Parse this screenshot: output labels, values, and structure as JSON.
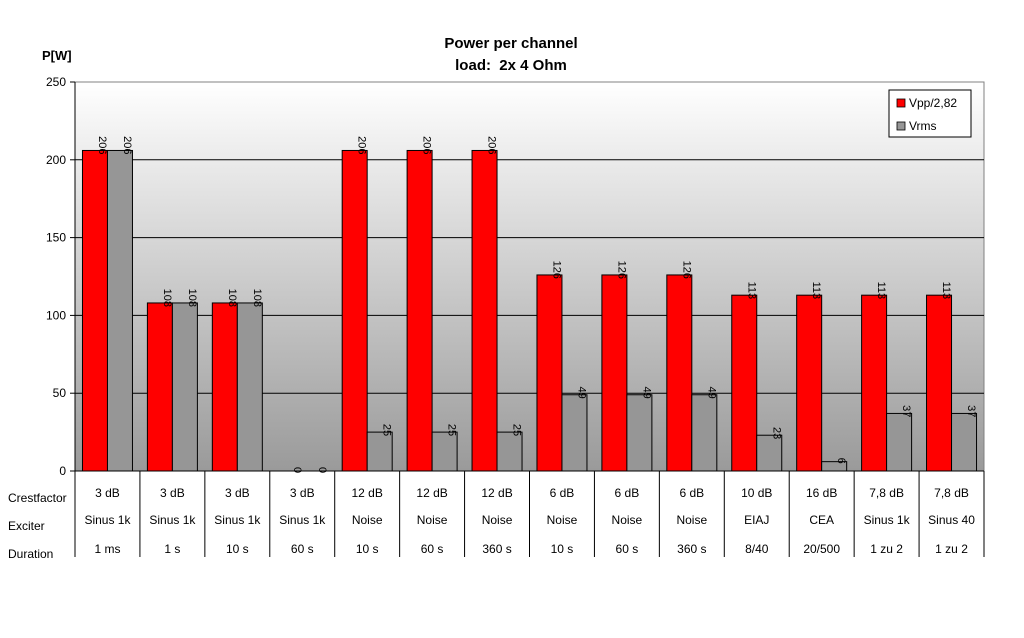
{
  "chart_data": {
    "type": "bar",
    "title": "Power per channel",
    "subtitle": "load:  2x 4 Ohm",
    "ylabel": "P[W]",
    "ylim": [
      0,
      250
    ],
    "yticks": [
      "0",
      "50",
      "100",
      "150",
      "200",
      "250"
    ],
    "grid": true,
    "legend_position": "top-right",
    "row_labels": [
      "Crestfactor",
      "Exciter",
      "Duration"
    ],
    "categories": [
      {
        "crest": "3 dB",
        "exciter": "Sinus 1k",
        "duration": "1 ms"
      },
      {
        "crest": "3 dB",
        "exciter": "Sinus 1k",
        "duration": "1 s"
      },
      {
        "crest": "3 dB",
        "exciter": "Sinus 1k",
        "duration": "10 s"
      },
      {
        "crest": "3 dB",
        "exciter": "Sinus 1k",
        "duration": "60 s"
      },
      {
        "crest": "12 dB",
        "exciter": "Noise",
        "duration": "10 s"
      },
      {
        "crest": "12 dB",
        "exciter": "Noise",
        "duration": "60 s"
      },
      {
        "crest": "12 dB",
        "exciter": "Noise",
        "duration": "360 s"
      },
      {
        "crest": "6 dB",
        "exciter": "Noise",
        "duration": "10 s"
      },
      {
        "crest": "6 dB",
        "exciter": "Noise",
        "duration": "60 s"
      },
      {
        "crest": "6 dB",
        "exciter": "Noise",
        "duration": "360 s"
      },
      {
        "crest": "10 dB",
        "exciter": "EIAJ",
        "duration": "8/40"
      },
      {
        "crest": "16 dB",
        "exciter": "CEA",
        "duration": "20/500"
      },
      {
        "crest": "7,8 dB",
        "exciter": "Sinus 1k",
        "duration": "1 zu 2"
      },
      {
        "crest": "7,8 dB",
        "exciter": "Sinus 40",
        "duration": "1 zu 2"
      }
    ],
    "series": [
      {
        "name": "Vpp/2,82",
        "color": "#ff0000",
        "values": [
          206,
          108,
          108,
          0,
          206,
          206,
          206,
          126,
          126,
          126,
          113,
          113,
          113,
          113
        ]
      },
      {
        "name": "Vrms",
        "color": "#969696",
        "values": [
          206,
          108,
          108,
          0,
          25,
          25,
          25,
          49,
          49,
          49,
          23,
          6,
          37,
          37
        ]
      }
    ]
  }
}
